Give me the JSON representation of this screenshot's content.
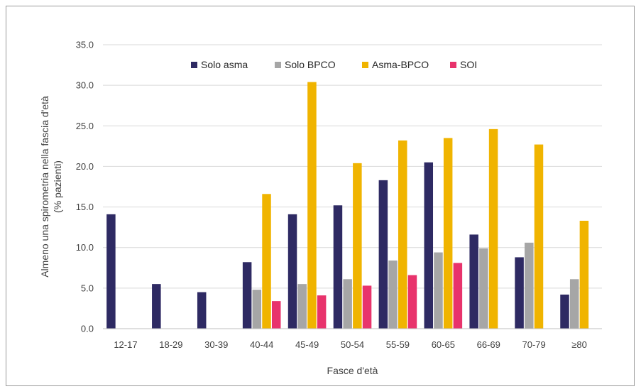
{
  "chart_data": {
    "type": "bar",
    "title": "",
    "xlabel": "Fasce d'età",
    "ylabel_lines": [
      "Almeno una spirometria nella fascia d'età",
      "(% pazienti)"
    ],
    "ylim": [
      0,
      35
    ],
    "yticks": [
      "0.0",
      "5.0",
      "10.0",
      "15.0",
      "20.0",
      "25.0",
      "30.0",
      "35.0"
    ],
    "grid": "horizontal",
    "legend_position": "top",
    "categories": [
      "12-17",
      "18-29",
      "30-39",
      "40-44",
      "45-49",
      "50-54",
      "55-59",
      "60-65",
      "66-69",
      "70-79",
      "≥80"
    ],
    "series": [
      {
        "name": "Solo asma",
        "color": "#2e2a63",
        "values": [
          14.1,
          5.5,
          4.5,
          8.2,
          14.1,
          15.2,
          18.3,
          20.5,
          11.6,
          8.8,
          4.2
        ]
      },
      {
        "name": "Solo BPCO",
        "color": "#a6a6a6",
        "values": [
          0,
          0,
          0,
          4.8,
          5.5,
          6.1,
          8.4,
          9.4,
          9.9,
          10.6,
          6.1
        ]
      },
      {
        "name": "Asma-BPCO",
        "color": "#f0b400",
        "values": [
          0,
          0,
          0,
          16.6,
          30.4,
          20.4,
          23.2,
          23.5,
          24.6,
          22.7,
          13.3
        ]
      },
      {
        "name": "SOI",
        "color": "#e8336c",
        "values": [
          0,
          0,
          0,
          3.4,
          4.1,
          5.3,
          6.6,
          8.1,
          0,
          0,
          0
        ]
      }
    ]
  }
}
